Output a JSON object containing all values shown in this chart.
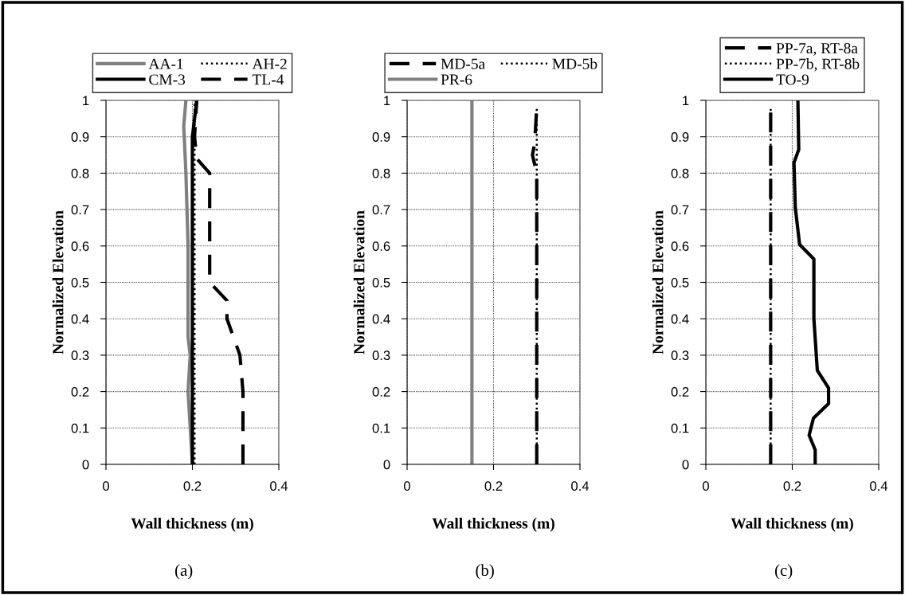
{
  "chart_data": [
    {
      "type": "line",
      "xlabel": "Wall thickness (m)",
      "ylabel": "Normalized Elevation",
      "xlim": [
        0,
        0.4
      ],
      "ylim": [
        0,
        1
      ],
      "xticks": [
        0,
        0.2,
        0.4
      ],
      "yticks": [
        0,
        0.1,
        0.2,
        0.3,
        0.4,
        0.5,
        0.6,
        0.7,
        0.8,
        0.9,
        1
      ],
      "grid": true,
      "legend": "top",
      "annotations": [
        "(a)"
      ],
      "series": [
        {
          "name": "AA-1",
          "color": "#808080",
          "line_style": "solid",
          "x": [
            0.2,
            0.195,
            0.19,
            0.195,
            0.19,
            0.19,
            0.185,
            0.18,
            0.185
          ],
          "values": [
            0,
            0.1,
            0.2,
            0.3,
            0.35,
            0.6,
            0.8,
            0.93,
            1
          ]
        },
        {
          "name": "AH-2",
          "color": "#000000",
          "line_style": "dotted",
          "x": [
            0.205,
            0.205
          ],
          "values": [
            0,
            1
          ]
        },
        {
          "name": "CM-3",
          "color": "#000000",
          "line_style": "solid",
          "x": [
            0.2,
            0.2,
            0.21
          ],
          "values": [
            0,
            0.9,
            1
          ]
        },
        {
          "name": "TL-4",
          "color": "#000000",
          "line_style": "dashed",
          "x": [
            0.317,
            0.317,
            0.31,
            0.28,
            0.28,
            0.24,
            0.24,
            0.21,
            0.205,
            0.21
          ],
          "values": [
            0,
            0.2,
            0.3,
            0.4,
            0.45,
            0.5,
            0.8,
            0.84,
            0.9,
            1
          ]
        }
      ]
    },
    {
      "type": "line",
      "xlabel": "Wall thickness (m)",
      "ylabel": "Normalized Elevation",
      "xlim": [
        0,
        0.4
      ],
      "ylim": [
        0,
        1
      ],
      "xticks": [
        0,
        0.2,
        0.4
      ],
      "yticks": [
        0,
        0.1,
        0.2,
        0.3,
        0.4,
        0.5,
        0.6,
        0.7,
        0.8,
        0.9,
        1
      ],
      "grid": true,
      "legend": "top",
      "annotations": [
        "(b)"
      ],
      "series": [
        {
          "name": "MD-5a",
          "color": "#000000",
          "line_style": "dashed",
          "x": [
            0.3,
            0.3,
            0.29,
            0.295,
            0.3
          ],
          "values": [
            0,
            0.8,
            0.85,
            0.88,
            0.98
          ]
        },
        {
          "name": "MD-5b",
          "color": "#000000",
          "line_style": "dotted",
          "x": [
            0.3,
            0.3
          ],
          "values": [
            0,
            0.98
          ]
        },
        {
          "name": "PR-6",
          "color": "#808080",
          "line_style": "solid",
          "x": [
            0.15,
            0.15
          ],
          "values": [
            0,
            1
          ]
        }
      ]
    },
    {
      "type": "line",
      "xlabel": "Wall thickness (m)",
      "ylabel": "Normalized Elevation",
      "xlim": [
        0,
        0.4
      ],
      "ylim": [
        0,
        1
      ],
      "xticks": [
        0,
        0.2,
        0.4
      ],
      "yticks": [
        0,
        0.1,
        0.2,
        0.3,
        0.4,
        0.5,
        0.6,
        0.7,
        0.8,
        0.9,
        1
      ],
      "grid": true,
      "legend": "top",
      "annotations": [
        "(c)"
      ],
      "series": [
        {
          "name": "PP-7a, RT-8a",
          "color": "#000000",
          "line_style": "dashed",
          "x": [
            0.15,
            0.15
          ],
          "values": [
            0,
            0.98
          ]
        },
        {
          "name": "PP-7b, RT-8b",
          "color": "#000000",
          "line_style": "dotted",
          "x": [
            0.15,
            0.15
          ],
          "values": [
            0,
            0.98
          ]
        },
        {
          "name": "TO-9",
          "color": "#000000",
          "line_style": "solid",
          "x": [
            0.253,
            0.253,
            0.239,
            0.249,
            0.284,
            0.284,
            0.258,
            0.25,
            0.25,
            0.217,
            0.207,
            0.204,
            0.215,
            0.213
          ],
          "values": [
            0,
            0.04,
            0.08,
            0.127,
            0.167,
            0.21,
            0.258,
            0.4,
            0.564,
            0.604,
            0.705,
            0.829,
            0.865,
            1
          ]
        }
      ]
    }
  ]
}
